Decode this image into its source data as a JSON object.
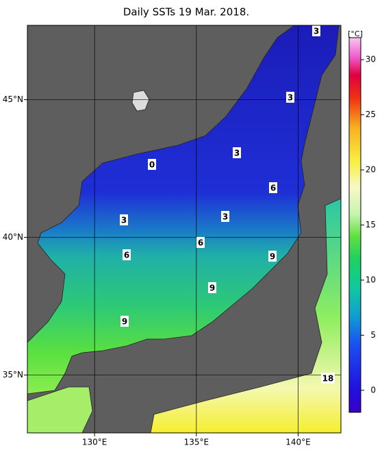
{
  "chart_data": {
    "type": "map",
    "title": "Daily SSTs 19 Mar. 2018.",
    "xlim": [
      126.7,
      142.1
    ],
    "ylim": [
      32.9,
      47.7
    ],
    "xticks": [
      {
        "value": 130,
        "label": "130°E"
      },
      {
        "value": 135,
        "label": "135°E"
      },
      {
        "value": 140,
        "label": "140°E"
      }
    ],
    "yticks": [
      {
        "value": 35,
        "label": "35°N"
      },
      {
        "value": 40,
        "label": "40°N"
      },
      {
        "value": 45,
        "label": "45°N"
      }
    ],
    "grid": true,
    "colorbar": {
      "unit": "[°C]",
      "lim": [
        -2,
        32
      ],
      "ticks": [
        0,
        5,
        10,
        15,
        20,
        25,
        30
      ]
    },
    "contour_labels": [
      3,
      3,
      3,
      0,
      6,
      3,
      3,
      6,
      6,
      9,
      9,
      9,
      18
    ]
  }
}
